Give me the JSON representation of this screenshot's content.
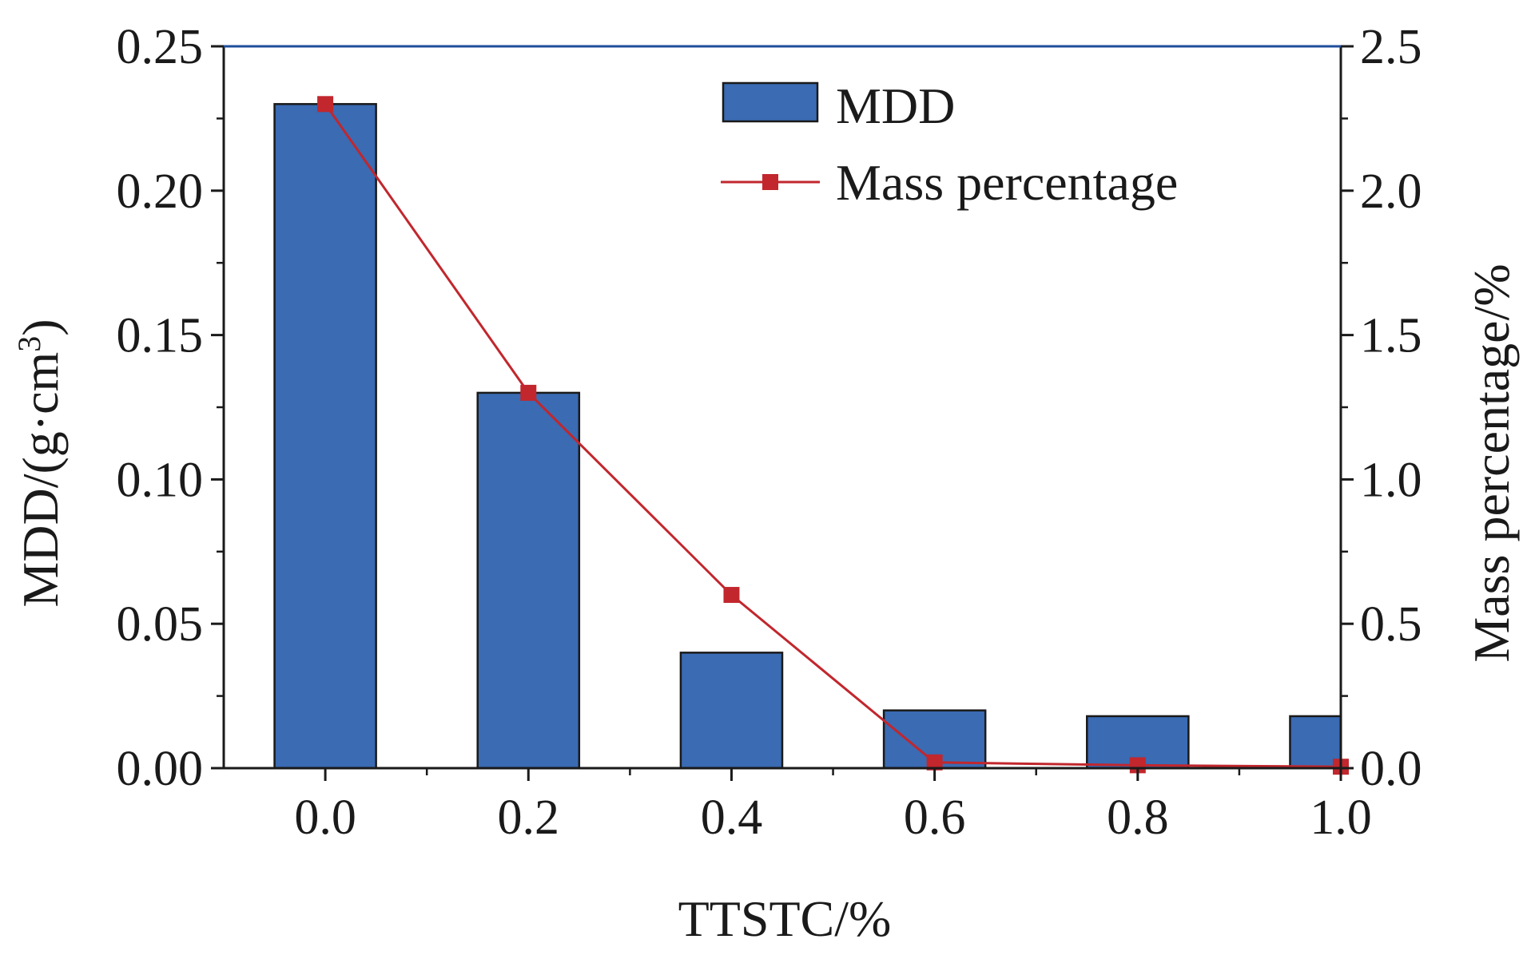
{
  "chart_data": {
    "type": "bar+line",
    "title": "",
    "xlabel": "TTSTC/%",
    "ylabel": "MDD/(g·cm",
    "ylabel_sup": "3",
    "ylabel_end": ")",
    "y2label": "Mass percentage/%",
    "x": [
      0.0,
      0.2,
      0.4,
      0.6,
      0.8,
      1.0
    ],
    "xlim": [
      -0.1,
      1.0
    ],
    "xticks": [
      "0.0",
      "0.2",
      "0.4",
      "0.6",
      "0.8",
      "1.0"
    ],
    "ylim": [
      0,
      0.25
    ],
    "yticks": [
      "0.00",
      "0.05",
      "0.10",
      "0.15",
      "0.20",
      "0.25"
    ],
    "y2lim": [
      0,
      2.5
    ],
    "y2ticks": [
      "0.0",
      "0.5",
      "1.0",
      "1.5",
      "2.0",
      "2.5"
    ],
    "series": [
      {
        "name": "MDD",
        "type": "bar",
        "axis": "left",
        "color": "#3a6bb3",
        "values": [
          0.23,
          0.13,
          0.04,
          0.02,
          0.018,
          0.018
        ]
      },
      {
        "name": "Mass percentage",
        "type": "line",
        "axis": "right",
        "color": "#c1272d",
        "values": [
          2.3,
          1.3,
          0.6,
          0.02,
          0.01,
          0.005
        ]
      }
    ],
    "legend": {
      "position": "top-right",
      "entries": [
        "MDD",
        "Mass percentage"
      ]
    },
    "top_border_color": "#1f4e9c"
  }
}
